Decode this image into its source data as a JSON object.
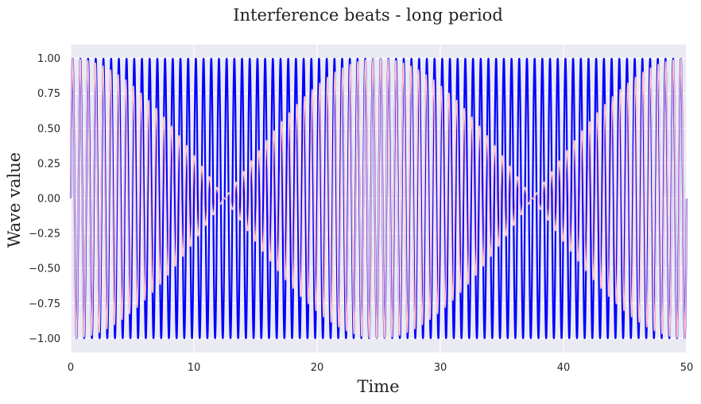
{
  "chart_data": {
    "type": "line",
    "title": "Interference beats - long period",
    "xlabel": "Time",
    "ylabel": "Wave value",
    "xlim": [
      0,
      50
    ],
    "ylim": [
      -1.1,
      1.1
    ],
    "xticks": [
      0,
      10,
      20,
      30,
      40,
      50
    ],
    "xtick_labels": [
      "0",
      "10",
      "20",
      "30",
      "40",
      "50"
    ],
    "yticks": [
      -1.0,
      -0.75,
      -0.5,
      -0.25,
      0.0,
      0.25,
      0.5,
      0.75,
      1.0
    ],
    "ytick_labels": [
      "−1.00",
      "−0.75",
      "−0.50",
      "−0.25",
      "0.00",
      "0.25",
      "0.50",
      "0.75",
      "1.00"
    ],
    "grid": true,
    "background_color": "#eaeaf2",
    "series": [
      {
        "function": "sin(2*pi*1.6*t)",
        "color": "#0000ff",
        "frequency_hz": 1.6,
        "amplitude": 1.0,
        "samples": 4000
      },
      {
        "function": "0.5*(sin(2*pi*1.6*t) + sin(2*pi*1.64*t))",
        "color": "#ffc0cb",
        "frequency_hz": [
          1.6,
          1.64
        ],
        "amplitude": 1.0,
        "envelope_period": 25,
        "samples": 4000
      }
    ]
  }
}
